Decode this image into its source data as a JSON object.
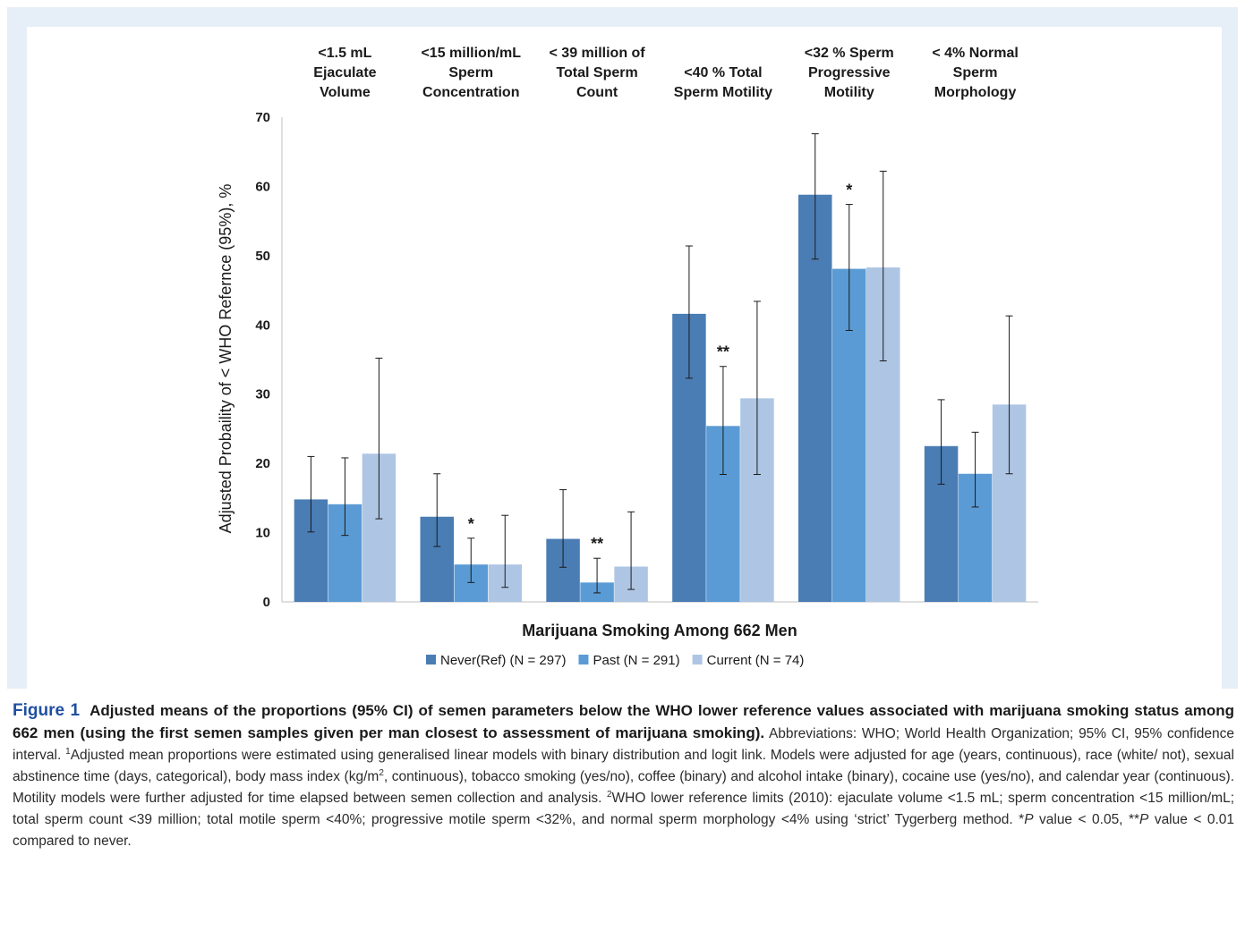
{
  "chart_data": {
    "type": "bar",
    "title": "",
    "xlabel": "Marijuana Smoking Among 662 Men",
    "ylabel": "Adjusted Probaility of < WHO Refernce (95%), %",
    "ylim": [
      0,
      70
    ],
    "yticks": [
      "0",
      "10",
      "20",
      "30",
      "40",
      "50",
      "60",
      "70"
    ],
    "grid": false,
    "legend_position": "bottom-center",
    "categories": [
      [
        "<1.5 mL",
        "Ejaculate",
        "Volume"
      ],
      [
        "<15 million/mL",
        "Sperm",
        "Concentration"
      ],
      [
        "< 39 million of",
        "Total Sperm",
        "Count"
      ],
      [
        "<40 % Total",
        "Sperm Motility"
      ],
      [
        "<32 % Sperm",
        "Progressive",
        "Motility"
      ],
      [
        "< 4% Normal",
        "Sperm",
        "Morphology"
      ]
    ],
    "series": [
      {
        "name": "Never(Ref) (N = 297)",
        "color": "#4a7db4",
        "values": [
          14.8,
          12.3,
          9.1,
          41.6,
          58.8,
          22.5
        ],
        "ci_low": [
          10.1,
          8.0,
          5.0,
          32.3,
          49.5,
          17.0
        ],
        "ci_high": [
          21.0,
          18.5,
          16.2,
          51.4,
          67.6,
          29.2
        ],
        "sig": [
          "",
          "",
          "",
          "",
          "",
          ""
        ]
      },
      {
        "name": "Past (N = 291)",
        "color": "#5b9bd5",
        "values": [
          14.1,
          5.4,
          2.8,
          25.4,
          48.1,
          18.5
        ],
        "ci_low": [
          9.6,
          2.8,
          1.3,
          18.4,
          39.2,
          13.7
        ],
        "ci_high": [
          20.8,
          9.2,
          6.3,
          34.0,
          57.4,
          24.5
        ],
        "sig": [
          "",
          "*",
          "**",
          "**",
          "*",
          ""
        ]
      },
      {
        "name": "Current (N = 74)",
        "color": "#aec6e4",
        "values": [
          21.4,
          5.4,
          5.1,
          29.4,
          48.3,
          28.5
        ],
        "ci_low": [
          12.0,
          2.1,
          1.8,
          18.4,
          34.8,
          18.5
        ],
        "ci_high": [
          35.2,
          12.5,
          13.0,
          43.4,
          62.2,
          41.3
        ],
        "sig": [
          "",
          "",
          "",
          "",
          "",
          ""
        ]
      }
    ]
  },
  "caption": {
    "figure_label": "Figure 1",
    "bold_text": "Adjusted means of the proportions (95% CI) of semen parameters below the WHO lower reference values associated with marijuana smoking status among 662 men (using the first semen samples given per man closest to assessment of marijuana smoking).",
    "abbrev": " Abbreviations: WHO; World Health Organization; 95% CI, 95% confidence interval. ",
    "sup1": "1",
    "text1": "Adjusted mean proportions were estimated using generalised linear models with binary distribution and logit link. Models were adjusted for age (years, continuous), race (white/ not), sexual abstinence time (days, categorical), body mass index (kg/m",
    "sup_m2": "2",
    "text2": ", continuous), tobacco smoking (yes/no), coffee (binary) and alcohol intake (binary), cocaine use (yes/no), and calendar year (continuous). Motility models were further adjusted for time elapsed between semen collection and analysis. ",
    "sup2": "2",
    "text3": "WHO lower reference limits (2010): ejaculate volume <1.5 mL; sperm concentration <15 million/mL; total sperm count <39 million; total motile sperm <40%; progressive motile sperm <32%, and normal sperm morphology <4% using ‘strict’ Tygerberg method. *",
    "p_italic": "P",
    "text4": " value < 0.05, **",
    "p_italic2": "P",
    "text5": " value < 0.01 compared to never."
  }
}
